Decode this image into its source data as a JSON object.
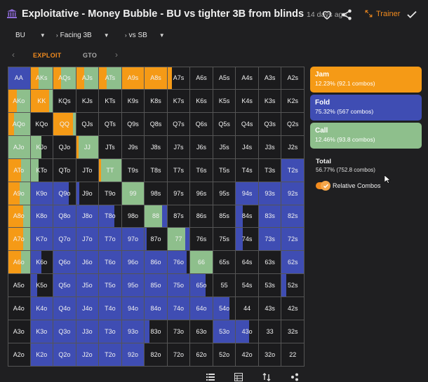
{
  "header": {
    "title": "Exploitative - Money Bubble - BU vs tighter 3B from blinds",
    "ago": "14 days ago",
    "trainer_label": "Trainer",
    "accent": "#f28b1e"
  },
  "filters": {
    "position": "BU",
    "action": "Facing 3B",
    "vs": "vs SB"
  },
  "tabs": {
    "exploit": "EXPLOIT",
    "gto": "GTO"
  },
  "colors": {
    "jam": "#f59a16",
    "fold": "#3f4db3",
    "call": "#8ebf8c",
    "empty": "#1b1b1d"
  },
  "grid": {
    "ranks": [
      "A",
      "K",
      "Q",
      "J",
      "T",
      "9",
      "8",
      "7",
      "6",
      "5",
      "4",
      "3",
      "2"
    ],
    "cells": [
      [
        "AA",
        "AKs",
        "AQs",
        "AJs",
        "ATs",
        "A9s",
        "A8s",
        "A7s",
        "A6s",
        "A5s",
        "A4s",
        "A3s",
        "A2s"
      ],
      [
        "AKo",
        "KK",
        "KQs",
        "KJs",
        "KTs",
        "K9s",
        "K8s",
        "K7s",
        "K6s",
        "K5s",
        "K4s",
        "K3s",
        "K2s"
      ],
      [
        "AQo",
        "KQo",
        "QQ",
        "QJs",
        "QTs",
        "Q9s",
        "Q8s",
        "Q7s",
        "Q6s",
        "Q5s",
        "Q4s",
        "Q3s",
        "Q2s"
      ],
      [
        "AJo",
        "KJo",
        "QJo",
        "JJ",
        "JTs",
        "J9s",
        "J8s",
        "J7s",
        "J6s",
        "J5s",
        "J4s",
        "J3s",
        "J2s"
      ],
      [
        "ATo",
        "KTo",
        "QTo",
        "JTo",
        "TT",
        "T9s",
        "T8s",
        "T7s",
        "T6s",
        "T5s",
        "T4s",
        "T3s",
        "T2s"
      ],
      [
        "A9o",
        "K9o",
        "Q9o",
        "J9o",
        "T9o",
        "99",
        "98s",
        "97s",
        "96s",
        "95s",
        "94s",
        "93s",
        "92s"
      ],
      [
        "A8o",
        "K8o",
        "Q8o",
        "J8o",
        "T8o",
        "98o",
        "88",
        "87s",
        "86s",
        "85s",
        "84s",
        "83s",
        "82s"
      ],
      [
        "A7o",
        "K7o",
        "Q7o",
        "J7o",
        "T7o",
        "97o",
        "87o",
        "77",
        "76s",
        "75s",
        "74s",
        "73s",
        "72s"
      ],
      [
        "A6o",
        "K6o",
        "Q6o",
        "J6o",
        "T6o",
        "96o",
        "86o",
        "76o",
        "66",
        "65s",
        "64s",
        "63s",
        "62s"
      ],
      [
        "A5o",
        "K5o",
        "Q5o",
        "J5o",
        "T5o",
        "95o",
        "85o",
        "75o",
        "65o",
        "55",
        "54s",
        "53s",
        "52s"
      ],
      [
        "A4o",
        "K4o",
        "Q4o",
        "J4o",
        "T4o",
        "94o",
        "84o",
        "74o",
        "64o",
        "54o",
        "44",
        "43s",
        "42s"
      ],
      [
        "A3o",
        "K3o",
        "Q3o",
        "J3o",
        "T3o",
        "93o",
        "83o",
        "73o",
        "63o",
        "53o",
        "43o",
        "33",
        "32s"
      ],
      [
        "A2o",
        "K2o",
        "Q2o",
        "J2o",
        "T2o",
        "92o",
        "82o",
        "72o",
        "62o",
        "52o",
        "42o",
        "32o",
        "22"
      ]
    ],
    "freq": [
      [
        [
          0,
          1,
          0
        ],
        [
          0.35,
          0,
          0.65
        ],
        [
          0.35,
          0,
          0.65
        ],
        [
          0.35,
          0,
          0.65
        ],
        [
          0.35,
          0,
          0.65
        ],
        [
          1,
          0,
          0
        ],
        [
          1,
          0,
          0
        ],
        [
          0.2,
          0,
          0
        ],
        [
          0,
          0,
          0
        ],
        [
          0,
          0,
          0
        ],
        [
          0,
          0,
          0
        ],
        [
          0,
          0,
          0
        ],
        [
          0,
          0,
          0
        ]
      ],
      [
        [
          0.4,
          0,
          0.6
        ],
        [
          0.85,
          0,
          0.15
        ],
        [
          0,
          0,
          0
        ],
        [
          0,
          0,
          0
        ],
        [
          0,
          0,
          0
        ],
        [
          0,
          0,
          0
        ],
        [
          0,
          0,
          0
        ],
        [
          0,
          0,
          0
        ],
        [
          0,
          0,
          0
        ],
        [
          0,
          0,
          0
        ],
        [
          0,
          0,
          0
        ],
        [
          0,
          0,
          0
        ],
        [
          0,
          0,
          0
        ]
      ],
      [
        [
          0.3,
          0,
          0.7
        ],
        [
          0,
          0,
          0
        ],
        [
          0.9,
          0,
          0.1
        ],
        [
          0,
          0,
          0
        ],
        [
          0,
          0,
          0
        ],
        [
          0,
          0,
          0
        ],
        [
          0,
          0,
          0
        ],
        [
          0,
          0,
          0
        ],
        [
          0,
          0,
          0
        ],
        [
          0,
          0,
          0
        ],
        [
          0,
          0,
          0
        ],
        [
          0,
          0,
          0
        ],
        [
          0,
          0,
          0
        ]
      ],
      [
        [
          0,
          0,
          1
        ],
        [
          0,
          0,
          0.5
        ],
        [
          0,
          0,
          0
        ],
        [
          0.1,
          0,
          0.9
        ],
        [
          0,
          0,
          0
        ],
        [
          0,
          0,
          0
        ],
        [
          0,
          0,
          0
        ],
        [
          0,
          0,
          0
        ],
        [
          0,
          0,
          0
        ],
        [
          0,
          0,
          0
        ],
        [
          0,
          0,
          0
        ],
        [
          0,
          0,
          0
        ],
        [
          0,
          0,
          0
        ]
      ],
      [
        [
          0.6,
          0,
          0.4
        ],
        [
          0,
          0,
          0.35
        ],
        [
          0,
          0,
          0
        ],
        [
          0,
          0,
          0
        ],
        [
          0.1,
          0,
          0.9
        ],
        [
          0,
          0,
          0
        ],
        [
          0,
          0,
          0
        ],
        [
          0,
          0,
          0
        ],
        [
          0,
          0,
          0
        ],
        [
          0,
          0,
          0
        ],
        [
          0,
          0,
          0
        ],
        [
          0,
          0,
          0
        ],
        [
          0,
          1,
          0
        ]
      ],
      [
        [
          0.55,
          0,
          0.45
        ],
        [
          0,
          1,
          0
        ],
        [
          0,
          0.7,
          0
        ],
        [
          0,
          0.15,
          0
        ],
        [
          0,
          0,
          0
        ],
        [
          0,
          0,
          1
        ],
        [
          0,
          0,
          0
        ],
        [
          0,
          0,
          0
        ],
        [
          0,
          0,
          0
        ],
        [
          0,
          0,
          0
        ],
        [
          0,
          1,
          0
        ],
        [
          0,
          1,
          0
        ],
        [
          0,
          1,
          0
        ]
      ],
      [
        [
          0.7,
          0,
          0.3
        ],
        [
          0,
          1,
          0
        ],
        [
          0,
          1,
          0
        ],
        [
          0,
          1,
          0
        ],
        [
          0,
          0.7,
          0
        ],
        [
          0,
          0,
          0
        ],
        [
          0,
          0.2,
          0.8
        ],
        [
          0,
          0,
          0
        ],
        [
          0,
          0,
          0
        ],
        [
          0,
          0,
          0
        ],
        [
          0,
          0.3,
          0
        ],
        [
          0,
          1,
          0
        ],
        [
          0,
          1,
          0
        ]
      ],
      [
        [
          0.7,
          0,
          0.3
        ],
        [
          0,
          1,
          0
        ],
        [
          0,
          1,
          0
        ],
        [
          0,
          1,
          0
        ],
        [
          0,
          1,
          0
        ],
        [
          0,
          1,
          0
        ],
        [
          0,
          0.1,
          0
        ],
        [
          0,
          0.2,
          0.8
        ],
        [
          0,
          0,
          0
        ],
        [
          0,
          0,
          0
        ],
        [
          0,
          0.3,
          0
        ],
        [
          0,
          1,
          0
        ],
        [
          0,
          1,
          0
        ]
      ],
      [
        [
          0.6,
          0,
          0.4
        ],
        [
          0,
          0.5,
          0
        ],
        [
          0,
          1,
          0
        ],
        [
          0,
          1,
          0
        ],
        [
          0,
          1,
          0
        ],
        [
          0,
          1,
          0
        ],
        [
          0,
          1,
          0
        ],
        [
          0,
          0.85,
          0
        ],
        [
          0,
          0,
          1
        ],
        [
          0,
          0,
          0
        ],
        [
          0,
          0,
          0
        ],
        [
          0,
          0,
          0
        ],
        [
          0,
          1,
          0
        ]
      ],
      [
        [
          0,
          0,
          0
        ],
        [
          0,
          0.3,
          0
        ],
        [
          0,
          1,
          0
        ],
        [
          0,
          1,
          0
        ],
        [
          0,
          1,
          0
        ],
        [
          0,
          1,
          0
        ],
        [
          0,
          1,
          0
        ],
        [
          0,
          1,
          0
        ],
        [
          0,
          0.7,
          0
        ],
        [
          0,
          0,
          0
        ],
        [
          0,
          0,
          0
        ],
        [
          0,
          0,
          0
        ],
        [
          0,
          0.2,
          0
        ]
      ],
      [
        [
          0,
          0,
          0
        ],
        [
          0,
          1,
          0
        ],
        [
          0,
          1,
          0
        ],
        [
          0,
          1,
          0
        ],
        [
          0,
          1,
          0
        ],
        [
          0,
          1,
          0
        ],
        [
          0,
          1,
          0
        ],
        [
          0,
          1,
          0
        ],
        [
          0,
          1,
          0
        ],
        [
          0,
          0.75,
          0
        ],
        [
          0,
          0,
          0
        ],
        [
          0,
          0,
          0
        ],
        [
          0,
          0,
          0
        ]
      ],
      [
        [
          0,
          0,
          0
        ],
        [
          0,
          1,
          0
        ],
        [
          0,
          1,
          0
        ],
        [
          0,
          1,
          0
        ],
        [
          0,
          1,
          0
        ],
        [
          0,
          1,
          0
        ],
        [
          0,
          0.2,
          0
        ],
        [
          0,
          0,
          0
        ],
        [
          0,
          0,
          0
        ],
        [
          0,
          1,
          0
        ],
        [
          0,
          0.6,
          0
        ],
        [
          0,
          0,
          0
        ],
        [
          0,
          0,
          0
        ]
      ],
      [
        [
          0,
          0,
          0
        ],
        [
          0,
          1,
          0
        ],
        [
          0,
          1,
          0
        ],
        [
          0,
          1,
          0
        ],
        [
          0,
          1,
          0
        ],
        [
          0,
          1,
          0
        ],
        [
          0,
          0,
          0
        ],
        [
          0,
          0,
          0
        ],
        [
          0,
          0,
          0
        ],
        [
          0,
          0,
          0
        ],
        [
          0,
          0,
          0
        ],
        [
          0,
          0,
          0
        ],
        [
          0,
          0,
          0
        ]
      ]
    ]
  },
  "summary": {
    "jam_title": "Jam",
    "jam_sub": "12.23% (92.1 combos)",
    "fold_title": "Fold",
    "fold_sub": "75.32% (567 combos)",
    "call_title": "Call",
    "call_sub": "12.46% (93.8 combos)",
    "total_title": "Total",
    "total_sub": "56.77% (752.8 combos)",
    "relative_label": "Relative Combos",
    "relative_on": true
  },
  "toolbar": {
    "icons": [
      "list-icon",
      "table-icon",
      "sort-icon",
      "share-icon"
    ]
  }
}
